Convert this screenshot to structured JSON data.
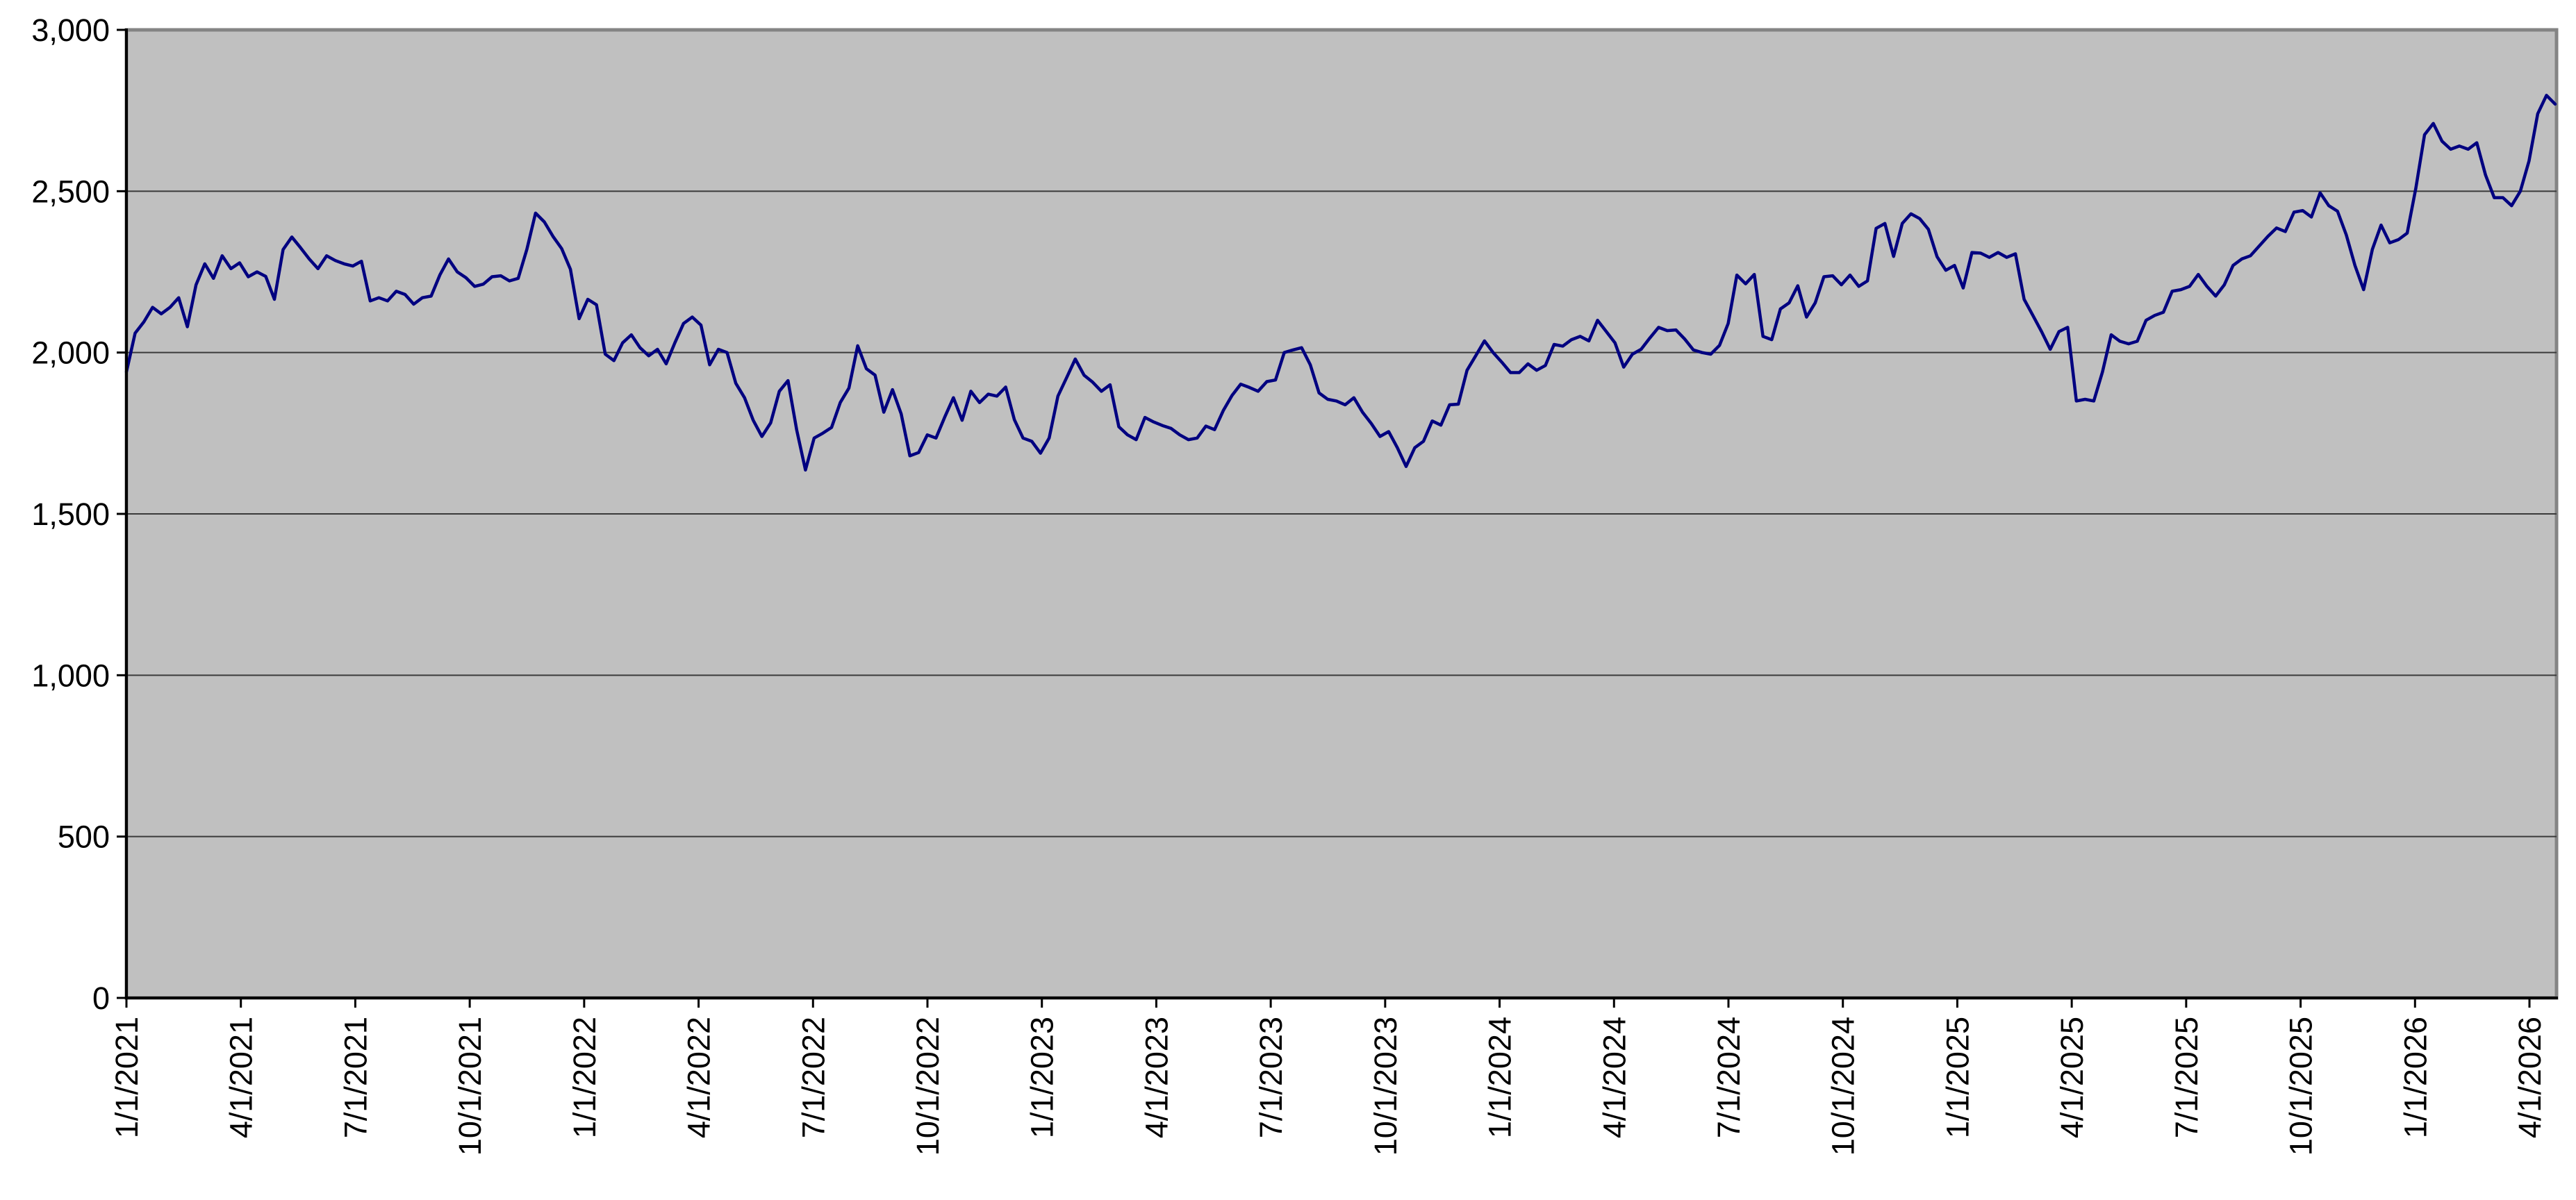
{
  "page": {
    "background": "#FFFFFF"
  },
  "chart_data": {
    "type": "line",
    "title": "",
    "xlabel": "",
    "ylabel": "",
    "grid": true,
    "legend": "none",
    "plot_background": "#C0C0C0",
    "plot_border_color": "#848484",
    "axis_color": "#000000",
    "gridline_color": "#3a3a3a",
    "line_color": "#000080",
    "ylim": [
      0,
      3000
    ],
    "y_ticks": [
      {
        "value": 0,
        "label": "0"
      },
      {
        "value": 500,
        "label": "500"
      },
      {
        "value": 1000,
        "label": "1,000"
      },
      {
        "value": 1500,
        "label": "1,500"
      },
      {
        "value": 2000,
        "label": "2,000"
      },
      {
        "value": 2500,
        "label": "2,500"
      },
      {
        "value": 3000,
        "label": "3,000"
      }
    ],
    "x_ticks": [
      "1/1/2021",
      "4/1/2021",
      "7/1/2021",
      "10/1/2021",
      "1/1/2022",
      "4/1/2022",
      "7/1/2022",
      "10/1/2022",
      "1/1/2023",
      "4/1/2023",
      "7/1/2023",
      "10/1/2023",
      "1/1/2024",
      "4/1/2024",
      "7/1/2024",
      "10/1/2024",
      "1/1/2025",
      "4/1/2025",
      "7/1/2025",
      "10/1/2025",
      "1/1/2026",
      "4/1/2026"
    ],
    "sampling": "approximately weekly from 1/1/2021 to mid-April 2026",
    "series": [
      {
        "name": "index-level",
        "color": "#000080",
        "values": [
          1940,
          2060,
          2095,
          2140,
          2120,
          2140,
          2170,
          2080,
          2210,
          2275,
          2230,
          2300,
          2260,
          2278,
          2235,
          2250,
          2236,
          2165,
          2319,
          2358,
          2325,
          2290,
          2260,
          2300,
          2285,
          2275,
          2268,
          2283,
          2160,
          2170,
          2160,
          2190,
          2180,
          2150,
          2170,
          2175,
          2240,
          2290,
          2250,
          2232,
          2205,
          2212,
          2235,
          2238,
          2222,
          2230,
          2320,
          2432,
          2405,
          2360,
          2322,
          2258,
          2105,
          2165,
          2148,
          1995,
          1975,
          2030,
          2055,
          2015,
          1990,
          2010,
          1965,
          2030,
          2090,
          2110,
          2085,
          1962,
          2010,
          2000,
          1905,
          1860,
          1790,
          1740,
          1782,
          1880,
          1913,
          1760,
          1636,
          1735,
          1750,
          1768,
          1845,
          1890,
          2021,
          1950,
          1930,
          1815,
          1885,
          1810,
          1680,
          1690,
          1745,
          1735,
          1800,
          1860,
          1790,
          1880,
          1845,
          1871,
          1865,
          1893,
          1792,
          1735,
          1725,
          1688,
          1735,
          1865,
          1922,
          1980,
          1930,
          1908,
          1880,
          1900,
          1770,
          1745,
          1730,
          1799,
          1785,
          1774,
          1765,
          1745,
          1730,
          1735,
          1772,
          1761,
          1820,
          1867,
          1902,
          1892,
          1880,
          1910,
          1915,
          2000,
          2008,
          2015,
          1962,
          1875,
          1855,
          1850,
          1838,
          1860,
          1815,
          1780,
          1740,
          1755,
          1705,
          1647,
          1705,
          1725,
          1788,
          1775,
          1838,
          1840,
          1945,
          1990,
          2036,
          2000,
          1970,
          1938,
          1938,
          1965,
          1945,
          1960,
          2025,
          2020,
          2040,
          2050,
          2036,
          2100,
          2065,
          2030,
          1955,
          1995,
          2010,
          2045,
          2078,
          2068,
          2070,
          2042,
          2008,
          2000,
          1995,
          2022,
          2090,
          2240,
          2213,
          2242,
          2050,
          2040,
          2135,
          2154,
          2207,
          2110,
          2154,
          2235,
          2238,
          2210,
          2240,
          2205,
          2222,
          2385,
          2400,
          2298,
          2400,
          2430,
          2415,
          2382,
          2297,
          2255,
          2270,
          2200,
          2310,
          2308,
          2295,
          2310,
          2295,
          2306,
          2165,
          2115,
          2065,
          2010,
          2065,
          2078,
          1850,
          1855,
          1850,
          1940,
          2055,
          2035,
          2027,
          2035,
          2100,
          2115,
          2125,
          2190,
          2195,
          2205,
          2242,
          2205,
          2175,
          2210,
          2270,
          2290,
          2300,
          2330,
          2360,
          2386,
          2375,
          2435,
          2440,
          2420,
          2495,
          2455,
          2438,
          2365,
          2270,
          2195,
          2320,
          2395,
          2340,
          2350,
          2370,
          2510,
          2675,
          2710,
          2655,
          2630,
          2640,
          2630,
          2650,
          2550,
          2480,
          2480,
          2455,
          2500,
          2594,
          2740,
          2797,
          2770
        ]
      }
    ]
  }
}
